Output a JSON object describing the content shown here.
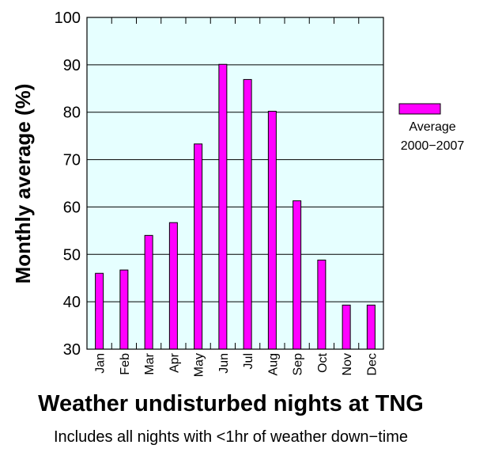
{
  "chart_data": {
    "type": "bar",
    "title": "Weather undisturbed nights at TNG",
    "subtitle": "Includes all nights with <1hr of weather down−time",
    "xlabel": "",
    "ylabel": "Monthly average (%)",
    "ylim": [
      30,
      100
    ],
    "yticks": [
      30,
      40,
      50,
      60,
      70,
      80,
      90,
      100
    ],
    "grid": true,
    "legend_position": "right",
    "categories": [
      "Jan",
      "Feb",
      "Mar",
      "Apr",
      "May",
      "Jun",
      "Jul",
      "Aug",
      "Sep",
      "Oct",
      "Nov",
      "Dec"
    ],
    "series": [
      {
        "name_line1": "Average",
        "name_line2": "2000−2007",
        "values": [
          46,
          46.7,
          54,
          56.7,
          73.3,
          90.1,
          86.9,
          80.2,
          61.3,
          48.8,
          39.3,
          39.3
        ]
      }
    ],
    "colors": {
      "bar_fill": "#ff00ff",
      "plot_background": "#e6ffff",
      "grid": "#000000"
    }
  }
}
